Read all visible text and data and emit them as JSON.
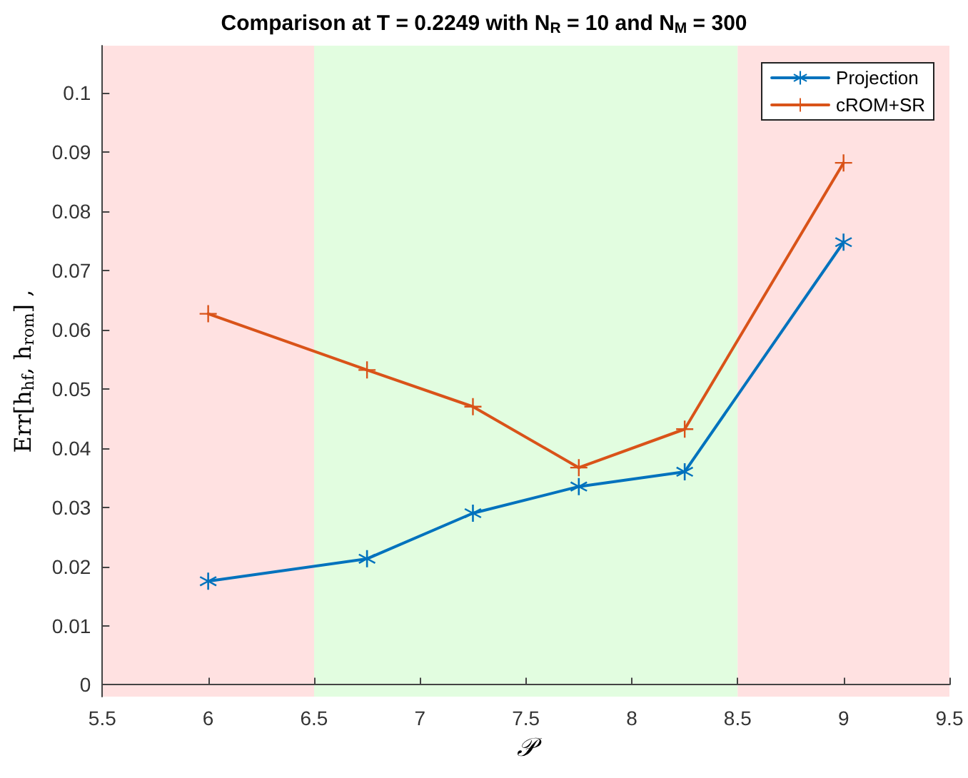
{
  "chart_data": {
    "type": "line",
    "title": "Comparison at T = 0.2249 with N$_{R}$ = 10 and N$_{M}$ = 300",
    "xlabel": "𝒫",
    "ylabel": "Err[h$_{hf}$, h$_{rom}$] ,",
    "x": [
      6,
      6.75,
      7.25,
      7.75,
      8.25,
      9
    ],
    "series": [
      {
        "name": "Projection",
        "color": "#0072bd",
        "marker": "star",
        "values": [
          0.0175,
          0.0213,
          0.029,
          0.0335,
          0.036,
          0.0748
        ]
      },
      {
        "name": "cROM+SR",
        "color": "#d95319",
        "marker": "cross",
        "values": [
          0.0627,
          0.0532,
          0.047,
          0.0367,
          0.0432,
          0.0882
        ]
      }
    ],
    "bands": [
      {
        "axis": "x",
        "from": 5.5,
        "to": 6.5,
        "color": "#ffe1e1"
      },
      {
        "axis": "x",
        "from": 6.5,
        "to": 8.5,
        "color": "#e2fde0"
      },
      {
        "axis": "x",
        "from": 8.5,
        "to": 9.5,
        "color": "#ffe1e1"
      }
    ],
    "xlim": [
      5.5,
      9.5
    ],
    "xticks": [
      5.5,
      6,
      6.5,
      7,
      7.5,
      8,
      8.5,
      9,
      9.5
    ],
    "ylim": [
      -0.002,
      0.108
    ],
    "yticks": [
      0,
      0.01,
      0.02,
      0.03,
      0.04,
      0.05,
      0.06,
      0.07,
      0.08,
      0.09,
      0.1
    ],
    "grid": false,
    "legend": "top right",
    "line_style": "solid"
  }
}
